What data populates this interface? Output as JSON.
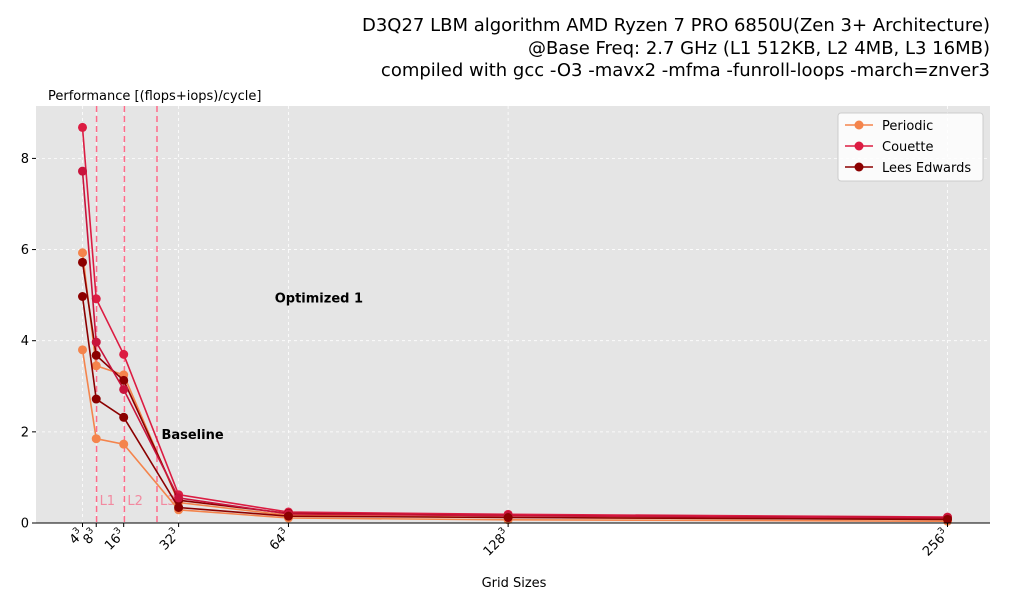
{
  "title_lines": [
    "D3Q27 LBM algorithm AMD Ryzen 7 PRO 6850U(Zen 3+ Architecture)",
    "@Base Freq: 2.7 GHz (L1 512KB, L2 4MB, L3 16MB)",
    "compiled with gcc -O3 -mavx2 -mfma -funroll-loops -march=znver3"
  ],
  "chart_data": {
    "type": "line",
    "ylabel": "Performance [(flops+iops)/cycle]",
    "xlabel": "Grid Sizes",
    "ylim": [
      0,
      9.15
    ],
    "yticks": [
      0,
      2,
      4,
      6,
      8
    ],
    "xticks": [
      {
        "x": 4,
        "base": "4",
        "exp": "3"
      },
      {
        "x": 8,
        "base": "8",
        "exp": "3"
      },
      {
        "x": 16,
        "base": "16",
        "exp": "3"
      },
      {
        "x": 32,
        "base": "32",
        "exp": "3"
      },
      {
        "x": 64,
        "base": "64",
        "exp": "3"
      },
      {
        "x": 128,
        "base": "128",
        "exp": "3"
      },
      {
        "x": 256,
        "base": "256",
        "exp": "3"
      }
    ],
    "grid": true,
    "legend_position": "top-right",
    "cache_lines": [
      {
        "label": "L1",
        "x": 8.1
      },
      {
        "label": "L2",
        "x": 16.2
      },
      {
        "label": "L3",
        "x": 25.7
      }
    ],
    "annotations": [
      {
        "text": "Optimized 1",
        "x": 60,
        "y": 4.95
      },
      {
        "text": "Baseline",
        "x": 27,
        "y": 1.95
      }
    ],
    "series": [
      {
        "name": "Periodic",
        "color": "#f4844c",
        "in_legend": true,
        "x": [
          4,
          8,
          16,
          32,
          64,
          128,
          256
        ],
        "y": [
          5.93,
          3.45,
          3.25,
          0.45,
          0.17,
          0.12,
          0.08
        ]
      },
      {
        "name": "Couette",
        "color": "#dc1c42",
        "in_legend": true,
        "x": [
          4,
          8,
          16,
          32,
          64,
          128,
          256
        ],
        "y": [
          8.68,
          4.92,
          3.7,
          0.62,
          0.24,
          0.19,
          0.13
        ]
      },
      {
        "name": "Lees Edwards",
        "color": "#8b0000",
        "in_legend": true,
        "x": [
          4,
          8,
          16,
          32,
          64,
          128,
          256
        ],
        "y": [
          5.72,
          3.68,
          3.13,
          0.5,
          0.21,
          0.16,
          0.11
        ]
      },
      {
        "name": "",
        "color": "#f4844c",
        "in_legend": false,
        "x": [
          4,
          8,
          16,
          32,
          64,
          128,
          256
        ],
        "y": [
          3.8,
          1.85,
          1.73,
          0.29,
          0.11,
          0.07,
          0.04
        ]
      },
      {
        "name": "",
        "color": "#c8143c",
        "in_legend": false,
        "x": [
          4,
          8,
          16,
          32,
          64,
          128,
          256
        ],
        "y": [
          7.72,
          3.97,
          2.93,
          0.55,
          0.2,
          0.16,
          0.11
        ]
      },
      {
        "name": "",
        "color": "#8b0000",
        "in_legend": false,
        "x": [
          4,
          8,
          16,
          32,
          64,
          128,
          256
        ],
        "y": [
          4.97,
          2.72,
          2.32,
          0.34,
          0.15,
          0.12,
          0.08
        ]
      }
    ]
  }
}
